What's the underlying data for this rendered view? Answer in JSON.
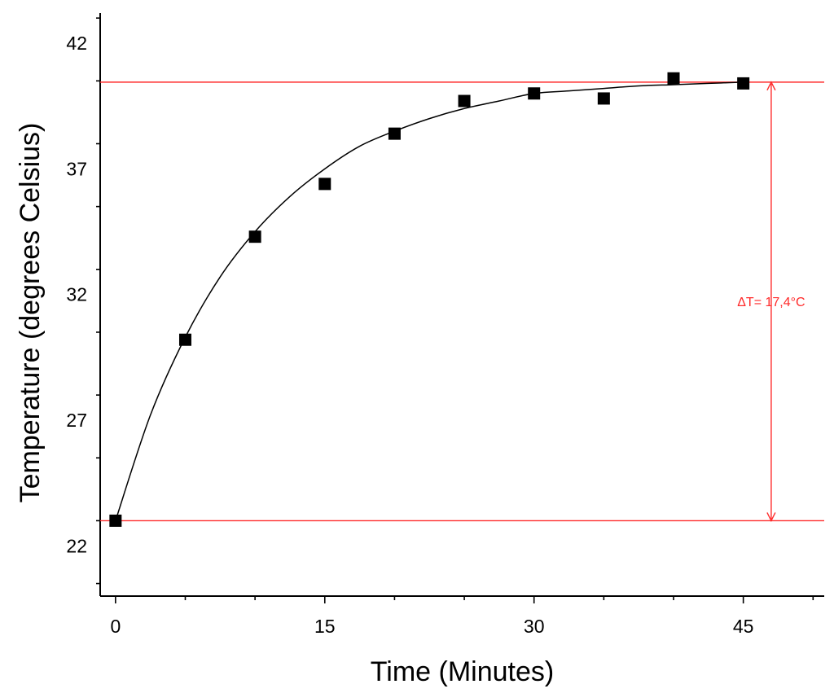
{
  "chart_data": {
    "type": "scatter",
    "xlabel": "Time (Minutes)",
    "ylabel": "Temperature (degrees Celsius)",
    "xlim": [
      -1.1,
      50.8
    ],
    "ylim": [
      20,
      43.2
    ],
    "x_ticks": [
      0,
      15,
      30,
      45
    ],
    "x_tick_labels": [
      "0",
      "15",
      "30",
      "45"
    ],
    "y_ticks": [
      22,
      27,
      32,
      37,
      42
    ],
    "y_tick_labels": [
      "22",
      "27",
      "32",
      "37",
      "42"
    ],
    "grid": false,
    "series": [
      {
        "marker": "square",
        "color": "#000000",
        "x": [
          0,
          5,
          10,
          15,
          20,
          25,
          30,
          35,
          40,
          45
        ],
        "y": [
          23.0,
          30.2,
          34.3,
          36.4,
          38.4,
          39.7,
          40.0,
          39.8,
          40.6,
          40.4
        ]
      }
    ],
    "fit_curve": {
      "color": "#000000",
      "x": [
        0,
        2.5,
        5,
        7.5,
        10,
        12.5,
        15,
        17.5,
        20,
        22.5,
        25,
        27.5,
        30,
        32.5,
        35,
        37.5,
        40,
        42.5,
        45
      ],
      "y": [
        23.0,
        27.2,
        30.3,
        32.7,
        34.5,
        35.9,
        37.0,
        37.9,
        38.5,
        39.0,
        39.4,
        39.7,
        40.0,
        40.1,
        40.2,
        40.3,
        40.35,
        40.4,
        40.45
      ]
    },
    "reference_lines": {
      "color": "#ff2b2b",
      "y_values": [
        40.45,
        23.0
      ]
    },
    "annotation": {
      "text": "ΔT= 17,4°C",
      "color": "#ff2b2b",
      "x": 47,
      "y_from": 23.0,
      "y_to": 40.45
    }
  }
}
